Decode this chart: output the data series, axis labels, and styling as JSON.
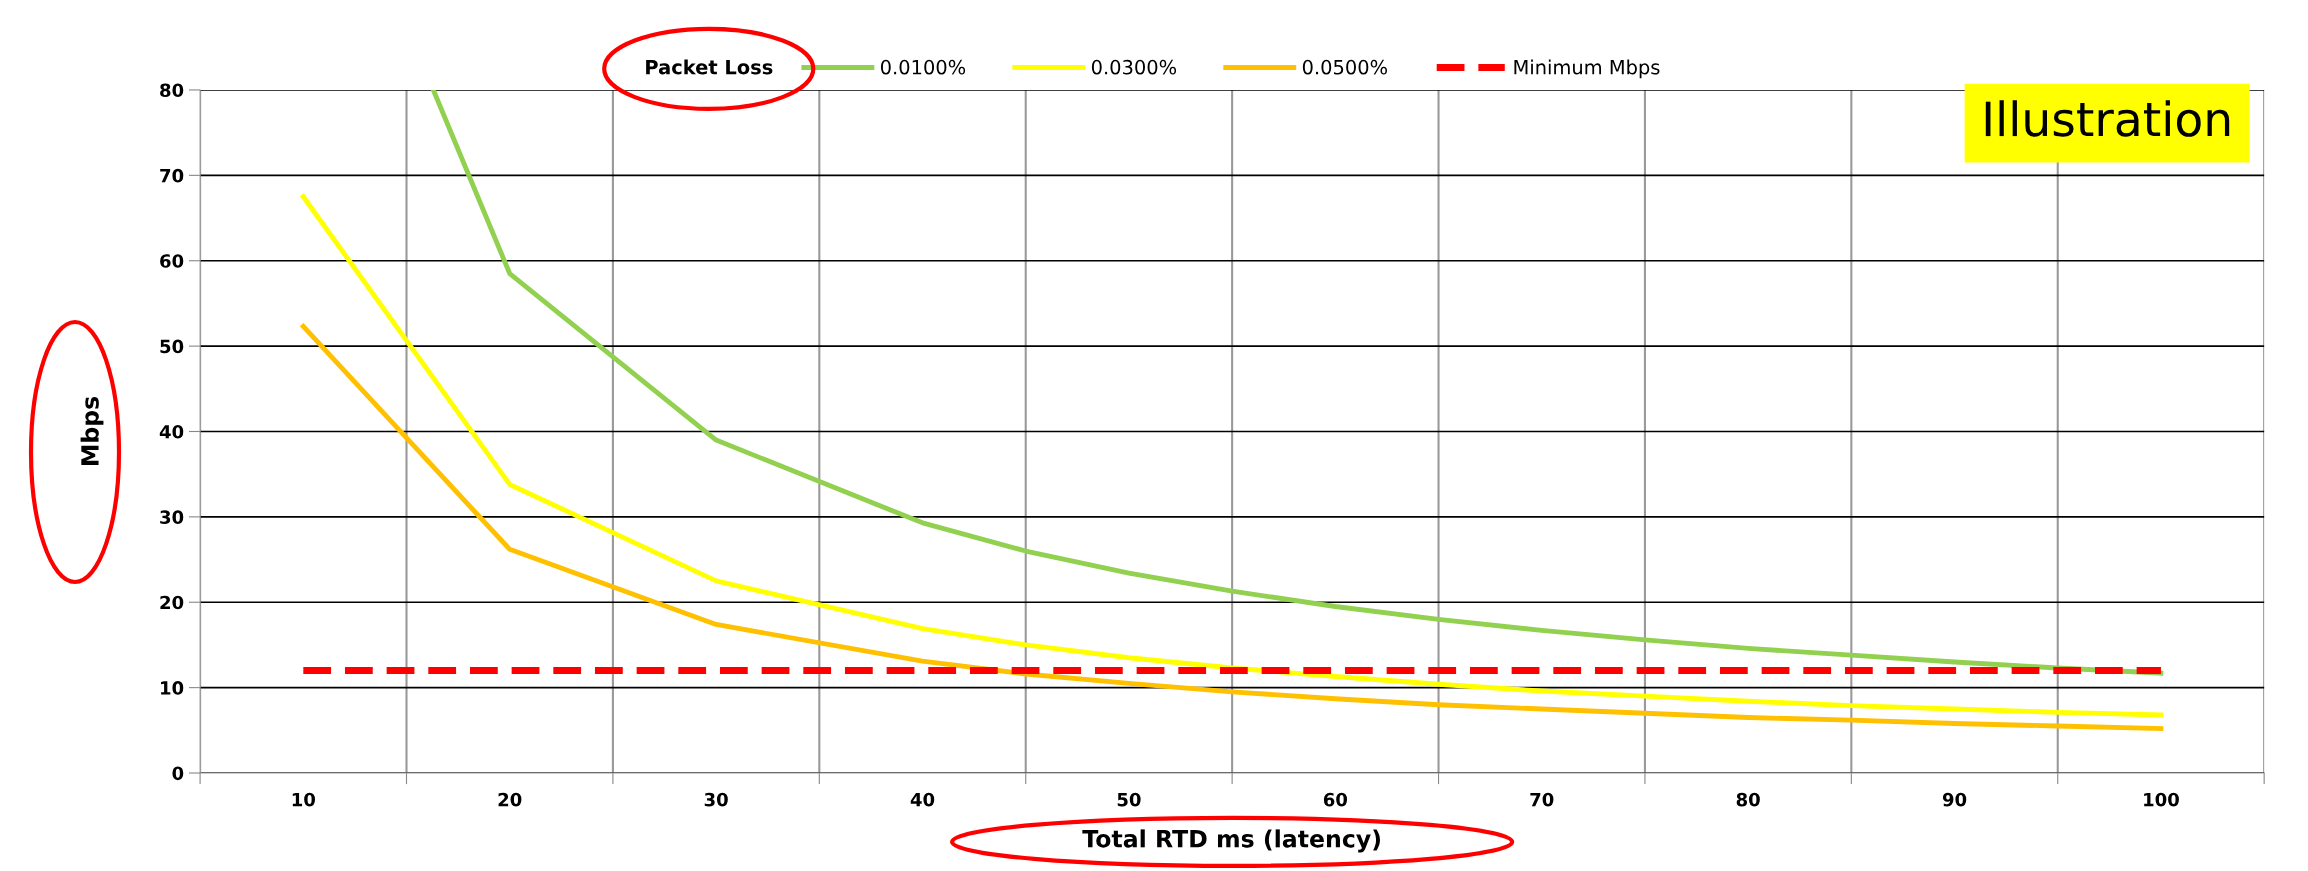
{
  "chart_data": {
    "type": "line",
    "xlabel": "Total RTD ms (latency)",
    "ylabel": "Mbps",
    "legend_title": "Packet Loss",
    "x": [
      10,
      20,
      30,
      40,
      45,
      50,
      55,
      60,
      65,
      70,
      75,
      80,
      85,
      90,
      95,
      100
    ],
    "series": [
      {
        "name": "0.0100%",
        "color": "#92d050",
        "x": [
          16.3,
          20,
          30,
          40,
          45,
          50,
          55,
          60,
          65,
          70,
          75,
          80,
          85,
          90,
          95,
          100
        ],
        "values": [
          80,
          58.5,
          39,
          29.3,
          26,
          23.4,
          21.3,
          19.5,
          18,
          16.7,
          15.6,
          14.6,
          13.8,
          13,
          12.3,
          11.7
        ]
      },
      {
        "name": "0.0300%",
        "color": "#ffff00",
        "values": [
          67.5,
          33.8,
          22.5,
          16.9,
          15,
          13.5,
          12.3,
          11.3,
          10.4,
          9.6,
          9,
          8.4,
          7.9,
          7.5,
          7.1,
          6.8
        ]
      },
      {
        "name": "0.0500%",
        "color": "#ffc000",
        "values": [
          52.3,
          26.2,
          17.4,
          13.1,
          11.6,
          10.5,
          9.5,
          8.7,
          8,
          7.5,
          7,
          6.5,
          6.2,
          5.8,
          5.5,
          5.2
        ]
      },
      {
        "name": "Minimum Mbps",
        "color": "#ff0000",
        "line_style": "dashed",
        "x": [
          10,
          100
        ],
        "values": [
          12,
          12
        ]
      }
    ],
    "xlim": [
      5,
      105
    ],
    "xticks": [
      {
        "value": 5,
        "label": null
      },
      10,
      {
        "value": 15,
        "label": null
      },
      20,
      {
        "value": 25,
        "label": null
      },
      30,
      {
        "value": 35,
        "label": null
      },
      40,
      {
        "value": 45,
        "label": null
      },
      50,
      {
        "value": 55,
        "label": null
      },
      60,
      {
        "value": 65,
        "label": null
      },
      70,
      {
        "value": 75,
        "label": null
      },
      80,
      {
        "value": 85,
        "label": null
      },
      90,
      {
        "value": 95,
        "label": null
      },
      100,
      {
        "value": 105,
        "label": null
      }
    ],
    "ylim": [
      0,
      80
    ],
    "yticks": [
      0,
      10,
      20,
      30,
      40,
      50,
      60,
      70,
      80
    ],
    "grid": true,
    "legend": "top",
    "annotations": [
      "Illustration"
    ]
  }
}
